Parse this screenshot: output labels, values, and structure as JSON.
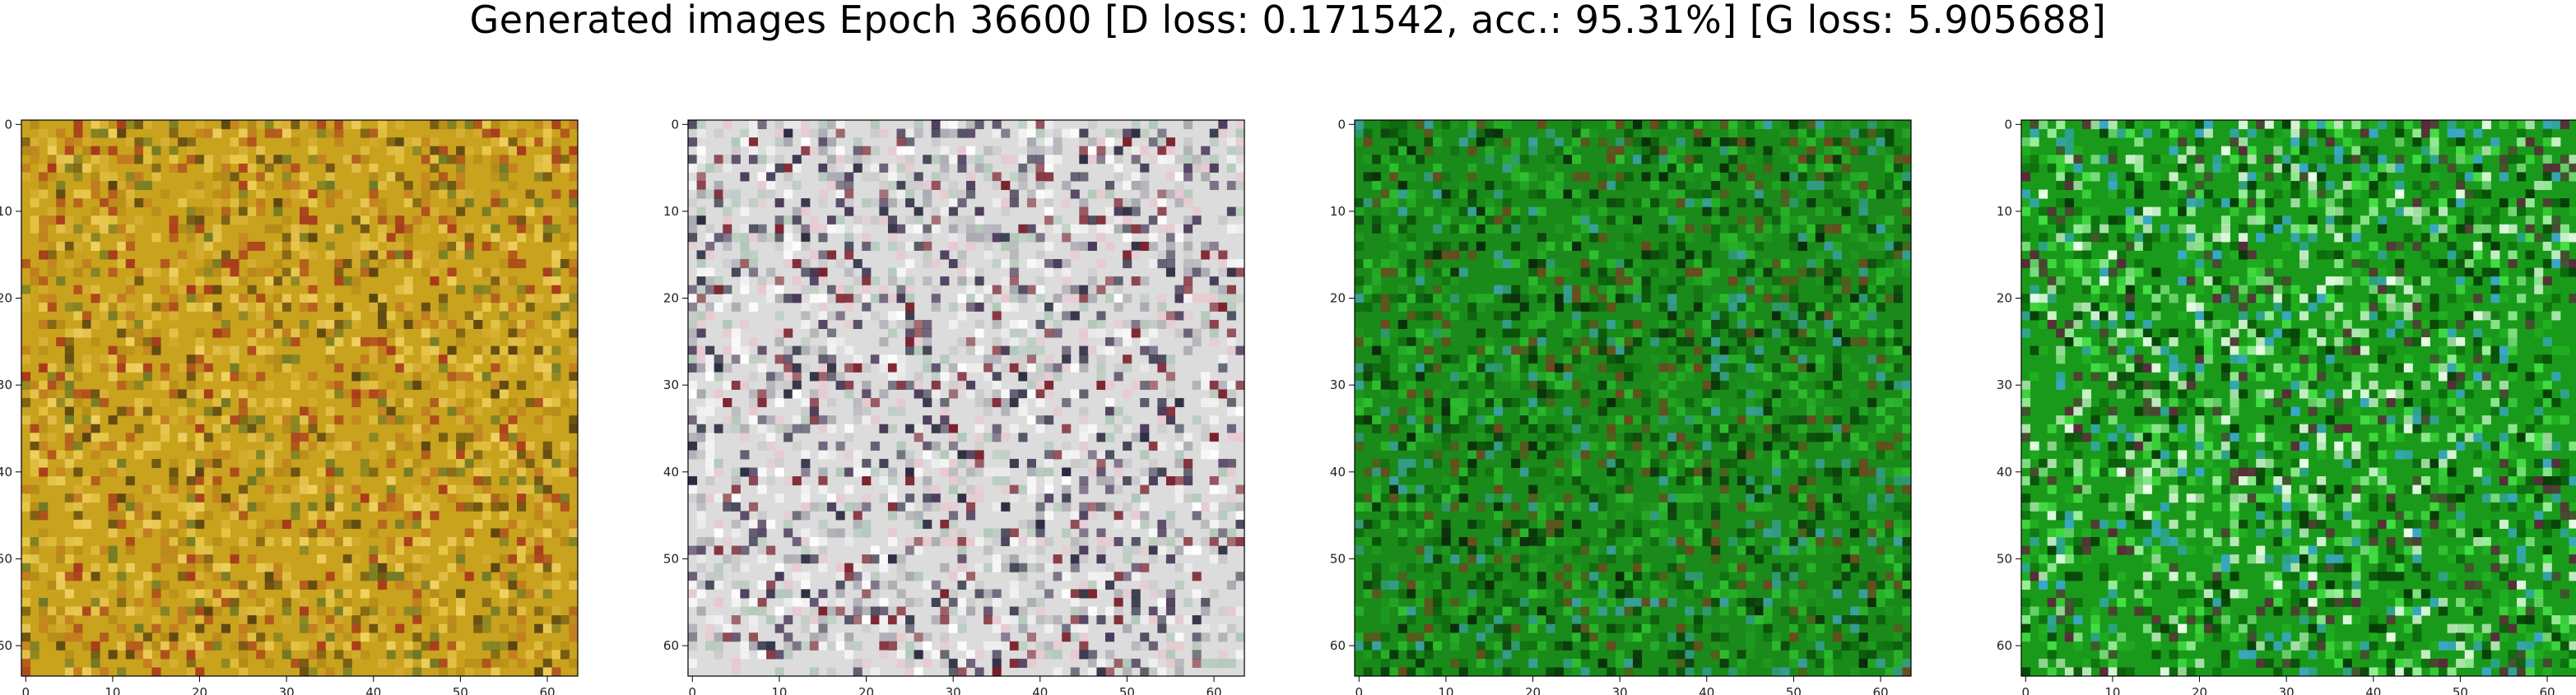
{
  "figure": {
    "title": "Generated images Epoch 36600 [D loss: 0.171542, acc.: 95.31%] [G loss: 5.905688]"
  },
  "panels": [
    {
      "name": "generated-image-1",
      "scheme": "yellow-orange",
      "base": "#c9a21e",
      "colors": [
        "#d8b036",
        "#e8c84a",
        "#b58a18",
        "#c27a20",
        "#6f7a26",
        "#a83a1c",
        "#f0d060",
        "#5a4410"
      ]
    },
    {
      "name": "generated-image-2",
      "scheme": "white-gray",
      "base": "#dcdcdc",
      "colors": [
        "#f2f2f2",
        "#ffffff",
        "#c8c8c8",
        "#a8a8b0",
        "#4a3a5a",
        "#7a1e2a",
        "#2a2a40",
        "#b0c8b8",
        "#e8c8d0"
      ]
    },
    {
      "name": "generated-image-3",
      "scheme": "green",
      "base": "#1a8a1a",
      "colors": [
        "#1f9a1f",
        "#28b228",
        "#0f6a0f",
        "#0a4a0a",
        "#2fc02f",
        "#3aa0a0",
        "#6a4a20",
        "#0a2a0a"
      ]
    },
    {
      "name": "generated-image-4",
      "scheme": "green-bright",
      "base": "#1a9a1a",
      "colors": [
        "#22b022",
        "#44e044",
        "#0c6a0c",
        "#063a06",
        "#9af09a",
        "#3aa8c8",
        "#5a2a3a",
        "#eaffea"
      ]
    }
  ],
  "axes": {
    "x_ticks": [
      "0",
      "10",
      "20",
      "30",
      "40",
      "50",
      "60"
    ],
    "y_ticks": [
      "0",
      "10",
      "20",
      "30",
      "40",
      "50",
      "60"
    ]
  }
}
